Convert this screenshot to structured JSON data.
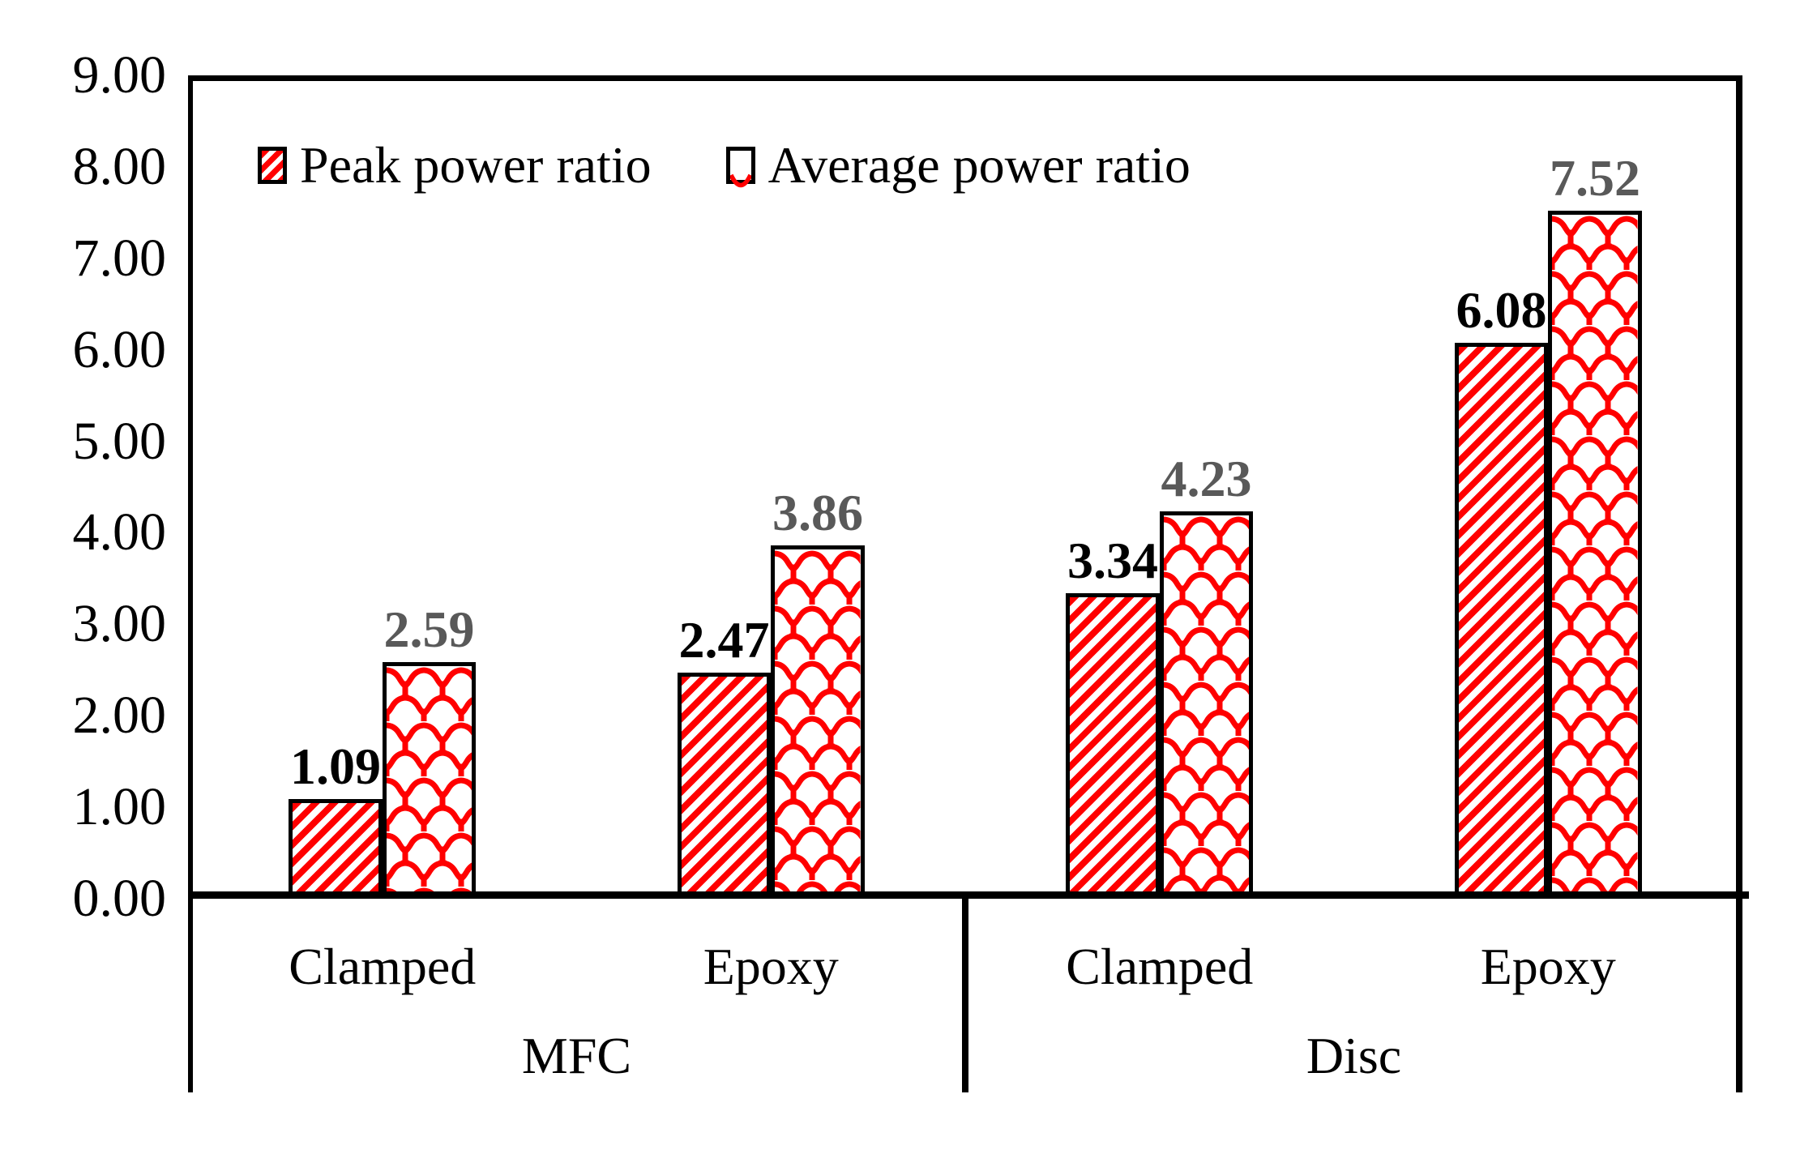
{
  "chart_data": {
    "type": "bar",
    "title": "",
    "legend": {
      "position": "top-left-inside",
      "entries": [
        "Peak power ratio",
        "Average power ratio"
      ]
    },
    "y_axis": {
      "min": 0,
      "max": 9,
      "step": 1,
      "tick_labels": [
        "0.00",
        "1.00",
        "2.00",
        "3.00",
        "4.00",
        "5.00",
        "6.00",
        "7.00",
        "8.00",
        "9.00"
      ]
    },
    "x_axis": {
      "group_labels": [
        "MFC",
        "Disc"
      ],
      "categories": [
        {
          "group": "MFC",
          "label": "Clamped"
        },
        {
          "group": "MFC",
          "label": "Epoxy"
        },
        {
          "group": "Disc",
          "label": "Clamped"
        },
        {
          "group": "Disc",
          "label": "Epoxy"
        }
      ]
    },
    "series": [
      {
        "name": "Peak power ratio",
        "pattern": "red-diagonal-hatch",
        "values": [
          1.09,
          2.47,
          3.34,
          6.08
        ],
        "value_labels": [
          "1.09",
          "2.47",
          "3.34",
          "6.08"
        ],
        "label_color": "#000000"
      },
      {
        "name": "Average power ratio",
        "pattern": "red-shingle-scale",
        "values": [
          2.59,
          3.86,
          4.23,
          7.52
        ],
        "value_labels": [
          "2.59",
          "3.86",
          "4.23",
          "7.52"
        ],
        "label_color": "#595959"
      }
    ],
    "colors": {
      "pattern": "#FF0000",
      "outline": "#000000",
      "background": "#FFFFFF"
    },
    "grid": "off"
  }
}
